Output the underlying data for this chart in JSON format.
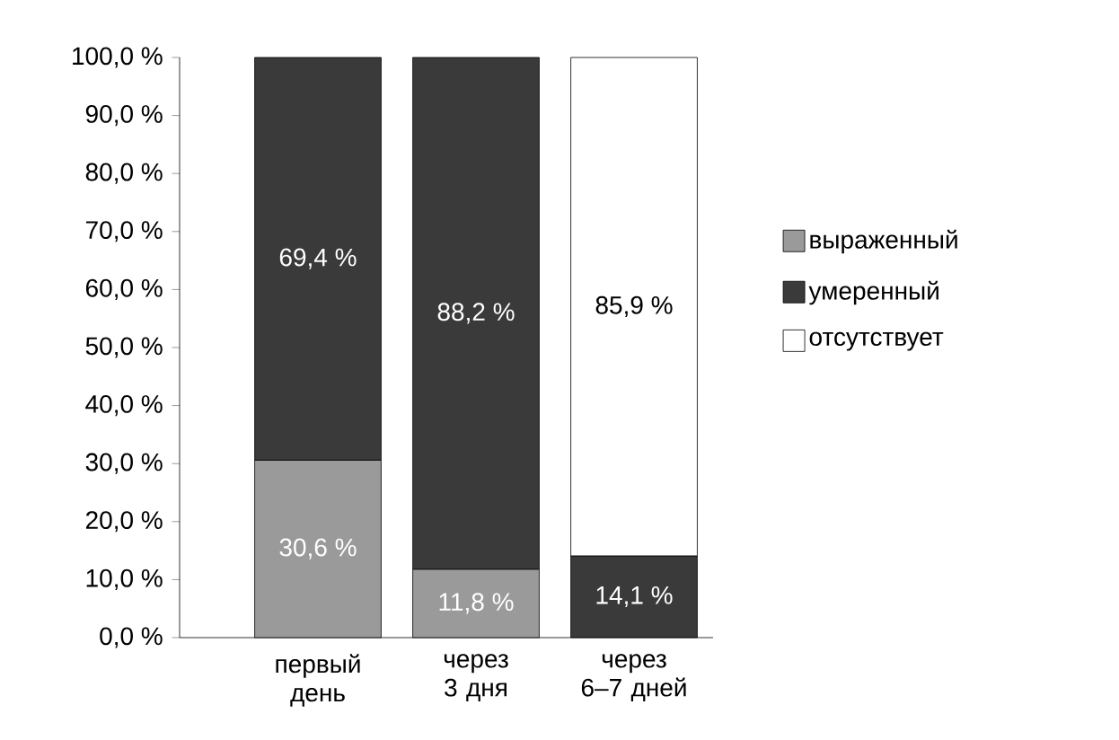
{
  "chart_data": {
    "type": "bar",
    "stacked": true,
    "categories": [
      "первый день",
      "через 3 дня",
      "через 6–7 дней"
    ],
    "series": [
      {
        "name": "выраженный",
        "color": "#9a9a9a",
        "values": [
          30.6,
          11.8,
          null
        ],
        "value_labels": [
          "30,6 %",
          "11,8 %",
          null
        ]
      },
      {
        "name": "умеренный",
        "color": "#3a3a3a",
        "values": [
          69.4,
          88.2,
          14.1
        ],
        "value_labels": [
          "69,4 %",
          "88,2 %",
          "14,1 %"
        ]
      },
      {
        "name": "отсутствует",
        "color": "#ffffff",
        "values": [
          null,
          null,
          85.9
        ],
        "value_labels": [
          null,
          null,
          "85,9 %"
        ]
      }
    ],
    "ylim": [
      0,
      100
    ],
    "yticks": [
      {
        "value": 0,
        "label": "0,0 %"
      },
      {
        "value": 10,
        "label": "10,0 %"
      },
      {
        "value": 20,
        "label": "20,0 %"
      },
      {
        "value": 30,
        "label": "30,0 %"
      },
      {
        "value": 40,
        "label": "40,0 %"
      },
      {
        "value": 50,
        "label": "50,0 %"
      },
      {
        "value": 60,
        "label": "60,0 %"
      },
      {
        "value": 70,
        "label": "70,0 %"
      },
      {
        "value": 80,
        "label": "80,0 %"
      },
      {
        "value": 90,
        "label": "90,0 %"
      },
      {
        "value": 100,
        "label": "100,0 %"
      }
    ],
    "grid": false,
    "legend": "right"
  }
}
